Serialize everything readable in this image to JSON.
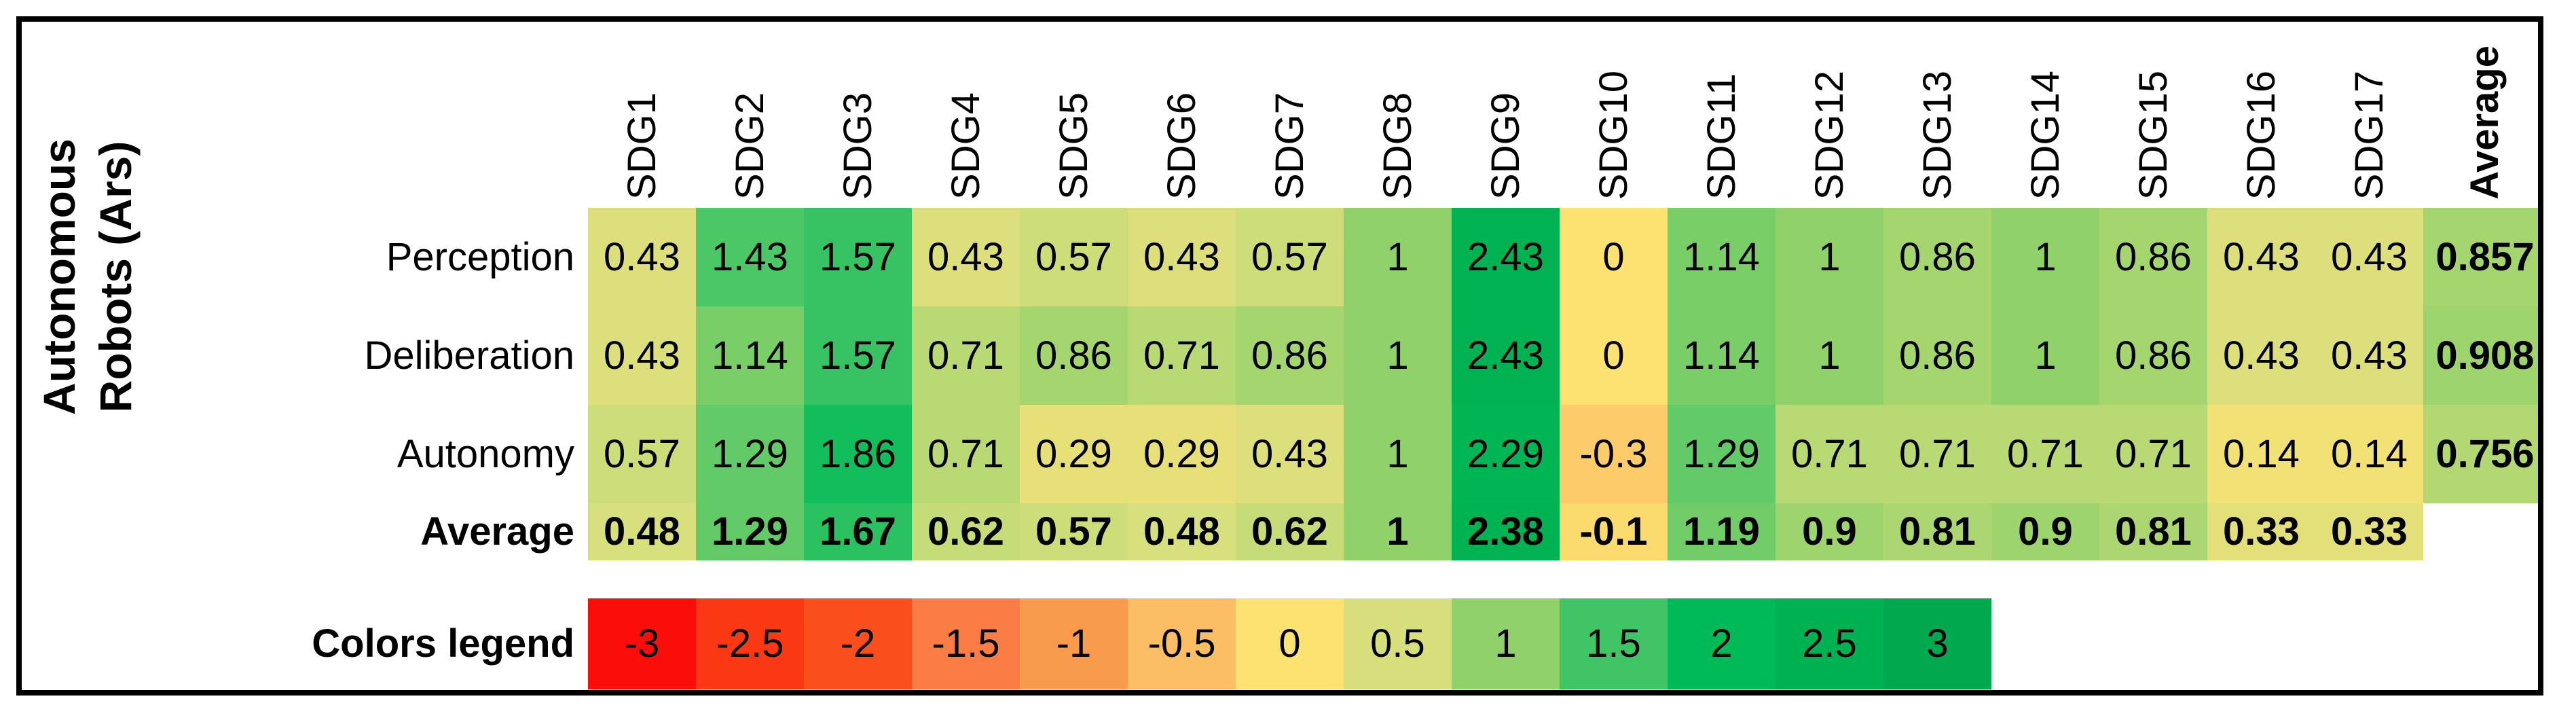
{
  "left_group_label": {
    "line1": "Autonomous",
    "line2": "Robots (Ars)"
  },
  "chart_data": {
    "type": "heatmap",
    "title": "Autonomous Robots (Ars) scores per SDG",
    "columns": [
      "SDG1",
      "SDG2",
      "SDG3",
      "SDG4",
      "SDG5",
      "SDG6",
      "SDG7",
      "SDG8",
      "SDG9",
      "SDG10",
      "SDG11",
      "SDG12",
      "SDG13",
      "SDG14",
      "SDG15",
      "SDG16",
      "SDG17"
    ],
    "average_column_header": "Average",
    "rows": [
      {
        "label": "Perception",
        "bold": false,
        "values": [
          "0.43",
          "1.43",
          "1.57",
          "0.43",
          "0.57",
          "0.43",
          "0.57",
          "1",
          "2.43",
          "0",
          "1.14",
          "1",
          "0.86",
          "1",
          "0.86",
          "0.43",
          "0.43"
        ],
        "average": "0.857"
      },
      {
        "label": "Deliberation",
        "bold": false,
        "values": [
          "0.43",
          "1.14",
          "1.57",
          "0.71",
          "0.86",
          "0.71",
          "0.86",
          "1",
          "2.43",
          "0",
          "1.14",
          "1",
          "0.86",
          "1",
          "0.86",
          "0.43",
          "0.43"
        ],
        "average": "0.908"
      },
      {
        "label": "Autonomy",
        "bold": false,
        "values": [
          "0.57",
          "1.29",
          "1.86",
          "0.71",
          "0.29",
          "0.29",
          "0.43",
          "1",
          "2.29",
          "-0.3",
          "1.29",
          "0.71",
          "0.71",
          "0.71",
          "0.71",
          "0.14",
          "0.14"
        ],
        "average": "0.756"
      },
      {
        "label": "Average",
        "bold": true,
        "values": [
          "0.48",
          "1.29",
          "1.67",
          "0.62",
          "0.57",
          "0.48",
          "0.62",
          "1",
          "2.38",
          "-0.1",
          "1.19",
          "0.9",
          "0.81",
          "0.9",
          "0.81",
          "0.33",
          "0.33"
        ],
        "average": null
      }
    ],
    "legend": {
      "label": "Colors legend",
      "values": [
        "-3",
        "-2.5",
        "-2",
        "-1.5",
        "-1",
        "-0.5",
        "0",
        "0.5",
        "1",
        "1.5",
        "2",
        "2.5",
        "3"
      ],
      "color_stops": [
        {
          "v": -3,
          "color": "#FB0D0A"
        },
        {
          "v": -2.5,
          "color": "#FB3814"
        },
        {
          "v": -2,
          "color": "#FA4E1D"
        },
        {
          "v": -1.5,
          "color": "#F97D44"
        },
        {
          "v": -1,
          "color": "#F99B4D"
        },
        {
          "v": -0.5,
          "color": "#FBBE64"
        },
        {
          "v": 0,
          "color": "#FCE271"
        },
        {
          "v": 0.5,
          "color": "#D7DF7D"
        },
        {
          "v": 1,
          "color": "#90D169"
        },
        {
          "v": 1.5,
          "color": "#40C566"
        },
        {
          "v": 2,
          "color": "#00BA57"
        },
        {
          "v": 2.5,
          "color": "#00B151"
        },
        {
          "v": 3,
          "color": "#00A94E"
        }
      ],
      "range": [
        -3,
        3
      ]
    },
    "layout": {
      "grid_lines": false,
      "column_headers_rotated": true,
      "text_color": "#000000",
      "border_color": "#000000"
    }
  }
}
